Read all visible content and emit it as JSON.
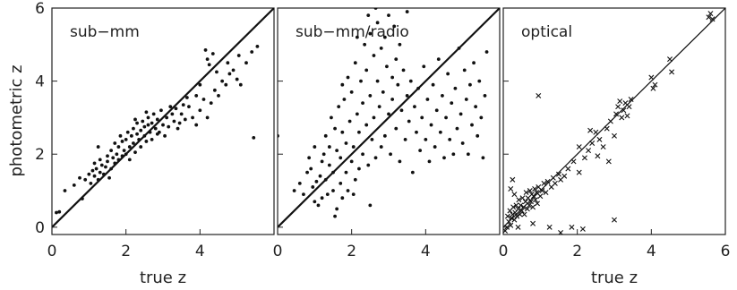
{
  "figure": {
    "ylabel": "photometric z"
  },
  "chart_data": [
    {
      "type": "scatter",
      "panel_label": "sub−mm",
      "xlabel": "true z",
      "xlim": [
        0,
        6
      ],
      "ylim": [
        -0.2,
        6
      ],
      "xticks": [
        0,
        2,
        4
      ],
      "yticks": [
        0,
        2,
        4,
        6
      ],
      "marker": "dot",
      "reference_line": "y = x",
      "points": [
        [
          0.12,
          0.4
        ],
        [
          0.2,
          0.42
        ],
        [
          0.35,
          1.0
        ],
        [
          0.6,
          1.15
        ],
        [
          0.75,
          1.35
        ],
        [
          0.82,
          0.78
        ],
        [
          0.9,
          1.3
        ],
        [
          1.0,
          1.45
        ],
        [
          1.05,
          1.2
        ],
        [
          1.1,
          1.55
        ],
        [
          1.15,
          1.4
        ],
        [
          1.2,
          1.6
        ],
        [
          1.25,
          1.3
        ],
        [
          1.3,
          1.5
        ],
        [
          1.35,
          1.7
        ],
        [
          1.4,
          1.45
        ],
        [
          1.45,
          1.65
        ],
        [
          1.5,
          1.8
        ],
        [
          1.55,
          1.35
        ],
        [
          1.6,
          2.1
        ],
        [
          1.6,
          1.6
        ],
        [
          1.65,
          1.9
        ],
        [
          1.7,
          1.75
        ],
        [
          1.7,
          2.3
        ],
        [
          1.75,
          2.0
        ],
        [
          1.8,
          1.85
        ],
        [
          1.8,
          2.2
        ],
        [
          1.85,
          2.5
        ],
        [
          1.9,
          1.95
        ],
        [
          1.9,
          2.35
        ],
        [
          1.95,
          2.1
        ],
        [
          2.0,
          2.4
        ],
        [
          2.0,
          2.0
        ],
        [
          2.05,
          2.6
        ],
        [
          2.1,
          2.2
        ],
        [
          2.1,
          1.85
        ],
        [
          2.15,
          2.5
        ],
        [
          2.2,
          2.3
        ],
        [
          2.2,
          2.7
        ],
        [
          2.25,
          2.05
        ],
        [
          2.3,
          2.55
        ],
        [
          2.3,
          2.85
        ],
        [
          2.35,
          2.4
        ],
        [
          2.4,
          2.65
        ],
        [
          2.4,
          2.2
        ],
        [
          2.45,
          2.9
        ],
        [
          2.5,
          2.5
        ],
        [
          2.5,
          2.75
        ],
        [
          2.55,
          2.35
        ],
        [
          2.6,
          2.8
        ],
        [
          2.6,
          3.0
        ],
        [
          2.65,
          2.6
        ],
        [
          2.7,
          2.85
        ],
        [
          2.7,
          2.4
        ],
        [
          2.75,
          3.1
        ],
        [
          2.8,
          2.7
        ],
        [
          2.85,
          2.95
        ],
        [
          2.9,
          2.6
        ],
        [
          2.95,
          3.2
        ],
        [
          3.0,
          2.8
        ],
        [
          3.05,
          2.5
        ],
        [
          3.1,
          3.0
        ],
        [
          3.15,
          2.75
        ],
        [
          3.2,
          3.3
        ],
        [
          3.3,
          2.9
        ],
        [
          3.4,
          2.7
        ],
        [
          3.5,
          3.1
        ],
        [
          3.6,
          2.95
        ],
        [
          3.7,
          3.3
        ],
        [
          3.8,
          3.0
        ],
        [
          3.9,
          2.8
        ],
        [
          4.0,
          3.2
        ],
        [
          4.1,
          3.5
        ],
        [
          4.2,
          3.0
        ],
        [
          4.3,
          3.4
        ],
        [
          4.4,
          3.75
        ],
        [
          4.5,
          3.6
        ],
        [
          4.6,
          4.0
        ],
        [
          4.7,
          3.9
        ],
        [
          4.8,
          4.2
        ],
        [
          5.0,
          4.05
        ],
        [
          5.1,
          3.9
        ],
        [
          5.25,
          4.5
        ],
        [
          5.4,
          4.8
        ],
        [
          5.45,
          2.45
        ],
        [
          5.55,
          4.95
        ],
        [
          4.15,
          4.85
        ],
        [
          4.2,
          4.6
        ],
        [
          4.25,
          4.45
        ],
        [
          4.9,
          4.3
        ],
        [
          5.05,
          4.7
        ],
        [
          4.35,
          4.75
        ],
        [
          4.45,
          4.25
        ],
        [
          4.75,
          4.5
        ],
        [
          3.9,
          3.6
        ],
        [
          4.0,
          3.9
        ],
        [
          3.35,
          3.25
        ],
        [
          3.45,
          2.85
        ],
        [
          2.25,
          2.95
        ],
        [
          2.55,
          3.15
        ],
        [
          1.5,
          1.95
        ],
        [
          1.3,
          1.85
        ],
        [
          1.25,
          2.2
        ],
        [
          1.15,
          1.75
        ],
        [
          2.85,
          2.55
        ],
        [
          3.25,
          3.1
        ],
        [
          3.55,
          3.35
        ],
        [
          3.65,
          3.55
        ]
      ]
    },
    {
      "type": "scatter",
      "panel_label": "sub−mm/radio",
      "xlabel": "",
      "xlim": [
        0,
        6
      ],
      "ylim": [
        -0.2,
        6
      ],
      "xticks": [
        0,
        2,
        4
      ],
      "yticks": [],
      "marker": "dot",
      "reference_line": "y = x",
      "points": [
        [
          0.0,
          2.5
        ],
        [
          0.45,
          1.0
        ],
        [
          0.6,
          1.2
        ],
        [
          0.7,
          0.9
        ],
        [
          0.8,
          1.5
        ],
        [
          0.9,
          1.6
        ],
        [
          0.95,
          1.1
        ],
        [
          1.0,
          0.7
        ],
        [
          1.05,
          1.25
        ],
        [
          1.1,
          0.6
        ],
        [
          1.15,
          1.4
        ],
        [
          1.2,
          0.8
        ],
        [
          1.2,
          1.8
        ],
        [
          1.25,
          2.0
        ],
        [
          1.3,
          1.3
        ],
        [
          1.3,
          2.5
        ],
        [
          1.35,
          0.9
        ],
        [
          1.4,
          1.7
        ],
        [
          1.4,
          2.2
        ],
        [
          1.45,
          3.0
        ],
        [
          1.5,
          1.0
        ],
        [
          1.5,
          1.5
        ],
        [
          1.55,
          2.7
        ],
        [
          1.6,
          0.5
        ],
        [
          1.6,
          2.1
        ],
        [
          1.65,
          3.3
        ],
        [
          1.7,
          1.2
        ],
        [
          1.7,
          1.9
        ],
        [
          1.75,
          2.6
        ],
        [
          1.75,
          0.8
        ],
        [
          1.8,
          3.5
        ],
        [
          1.85,
          1.5
        ],
        [
          1.85,
          2.3
        ],
        [
          1.9,
          4.1
        ],
        [
          1.9,
          1.0
        ],
        [
          1.95,
          2.9
        ],
        [
          2.0,
          1.8
        ],
        [
          2.0,
          3.7
        ],
        [
          2.05,
          2.2
        ],
        [
          2.1,
          4.5
        ],
        [
          2.1,
          1.3
        ],
        [
          2.15,
          3.1
        ],
        [
          2.2,
          2.6
        ],
        [
          2.2,
          1.6
        ],
        [
          2.25,
          4.0
        ],
        [
          2.3,
          3.4
        ],
        [
          2.3,
          2.0
        ],
        [
          2.35,
          5.0
        ],
        [
          2.4,
          2.8
        ],
        [
          2.4,
          4.3
        ],
        [
          2.45,
          1.7
        ],
        [
          2.5,
          3.6
        ],
        [
          2.5,
          5.3
        ],
        [
          2.55,
          2.4
        ],
        [
          2.6,
          4.7
        ],
        [
          2.6,
          3.0
        ],
        [
          2.65,
          1.9
        ],
        [
          2.7,
          4.0
        ],
        [
          2.7,
          5.6
        ],
        [
          2.75,
          3.3
        ],
        [
          2.8,
          2.2
        ],
        [
          2.8,
          4.9
        ],
        [
          2.85,
          3.7
        ],
        [
          2.9,
          5.2
        ],
        [
          2.9,
          2.5
        ],
        [
          2.95,
          4.4
        ],
        [
          3.0,
          3.1
        ],
        [
          3.0,
          5.8
        ],
        [
          3.05,
          2.0
        ],
        [
          3.1,
          4.1
        ],
        [
          3.1,
          3.5
        ],
        [
          3.15,
          5.5
        ],
        [
          3.2,
          2.7
        ],
        [
          3.2,
          4.6
        ],
        [
          3.25,
          3.9
        ],
        [
          3.3,
          1.8
        ],
        [
          3.3,
          5.0
        ],
        [
          3.35,
          3.2
        ],
        [
          3.4,
          4.3
        ],
        [
          3.45,
          2.4
        ],
        [
          3.5,
          3.6
        ],
        [
          3.5,
          5.9
        ],
        [
          3.55,
          2.9
        ],
        [
          3.6,
          4.0
        ],
        [
          3.65,
          1.5
        ],
        [
          3.7,
          3.3
        ],
        [
          3.75,
          2.6
        ],
        [
          3.8,
          3.8
        ],
        [
          3.85,
          2.1
        ],
        [
          3.9,
          3.0
        ],
        [
          3.95,
          4.4
        ],
        [
          4.0,
          2.4
        ],
        [
          4.05,
          3.5
        ],
        [
          4.1,
          1.8
        ],
        [
          4.15,
          2.8
        ],
        [
          4.2,
          3.9
        ],
        [
          4.25,
          2.2
        ],
        [
          4.3,
          3.2
        ],
        [
          4.35,
          4.6
        ],
        [
          4.4,
          2.6
        ],
        [
          4.45,
          3.6
        ],
        [
          4.5,
          1.9
        ],
        [
          4.55,
          3.0
        ],
        [
          4.6,
          4.2
        ],
        [
          4.65,
          2.4
        ],
        [
          4.7,
          3.4
        ],
        [
          4.75,
          2.0
        ],
        [
          4.8,
          3.8
        ],
        [
          4.85,
          2.7
        ],
        [
          4.9,
          4.9
        ],
        [
          4.95,
          3.1
        ],
        [
          5.0,
          2.3
        ],
        [
          5.05,
          4.3
        ],
        [
          5.1,
          3.5
        ],
        [
          5.15,
          2.0
        ],
        [
          5.2,
          3.9
        ],
        [
          5.25,
          2.8
        ],
        [
          5.3,
          4.5
        ],
        [
          5.35,
          3.3
        ],
        [
          5.4,
          2.5
        ],
        [
          5.45,
          4.0
        ],
        [
          5.5,
          3.0
        ],
        [
          5.55,
          1.9
        ],
        [
          5.6,
          3.6
        ],
        [
          5.65,
          4.8
        ],
        [
          1.0,
          2.2
        ],
        [
          0.85,
          1.9
        ],
        [
          1.55,
          0.3
        ],
        [
          2.05,
          0.9
        ],
        [
          2.5,
          0.6
        ],
        [
          1.75,
          3.9
        ],
        [
          2.15,
          5.2
        ],
        [
          2.45,
          5.8
        ],
        [
          2.65,
          6.0
        ]
      ]
    },
    {
      "type": "scatter",
      "panel_label": "optical",
      "xlabel": "true z",
      "xlim": [
        0,
        6
      ],
      "ylim": [
        -0.2,
        6
      ],
      "xticks": [
        0,
        2,
        4,
        6
      ],
      "yticks": [],
      "marker": "cross",
      "reference_line": "y = x",
      "points": [
        [
          0.05,
          -0.1
        ],
        [
          0.1,
          0.0
        ],
        [
          0.12,
          0.3
        ],
        [
          0.15,
          0.15
        ],
        [
          0.18,
          0.45
        ],
        [
          0.2,
          0.05
        ],
        [
          0.22,
          0.25
        ],
        [
          0.25,
          0.35
        ],
        [
          0.27,
          0.55
        ],
        [
          0.3,
          0.2
        ],
        [
          0.32,
          0.4
        ],
        [
          0.35,
          0.6
        ],
        [
          0.37,
          0.3
        ],
        [
          0.4,
          0.5
        ],
        [
          0.42,
          0.75
        ],
        [
          0.45,
          0.35
        ],
        [
          0.47,
          0.6
        ],
        [
          0.5,
          0.45
        ],
        [
          0.52,
          0.8
        ],
        [
          0.55,
          0.55
        ],
        [
          0.57,
          0.35
        ],
        [
          0.6,
          0.7
        ],
        [
          0.62,
          0.95
        ],
        [
          0.65,
          0.5
        ],
        [
          0.67,
          0.8
        ],
        [
          0.7,
          0.6
        ],
        [
          0.72,
          1.0
        ],
        [
          0.75,
          0.7
        ],
        [
          0.77,
          0.9
        ],
        [
          0.8,
          0.55
        ],
        [
          0.82,
          0.85
        ],
        [
          0.85,
          1.05
        ],
        [
          0.87,
          0.75
        ],
        [
          0.9,
          0.95
        ],
        [
          0.92,
          0.65
        ],
        [
          0.95,
          1.1
        ],
        [
          1.0,
          0.85
        ],
        [
          1.05,
          1.0
        ],
        [
          1.1,
          1.2
        ],
        [
          1.15,
          0.95
        ],
        [
          1.2,
          1.25
        ],
        [
          1.3,
          1.1
        ],
        [
          1.35,
          1.35
        ],
        [
          1.4,
          1.2
        ],
        [
          1.5,
          1.45
        ],
        [
          1.55,
          1.3
        ],
        [
          0.3,
          0.9
        ],
        [
          0.2,
          1.05
        ],
        [
          0.25,
          1.3
        ],
        [
          0.95,
          3.6
        ],
        [
          1.55,
          -0.15
        ],
        [
          1.85,
          0.0
        ],
        [
          2.15,
          -0.05
        ],
        [
          0.4,
          0.0
        ],
        [
          0.8,
          0.1
        ],
        [
          1.25,
          0.0
        ],
        [
          1.9,
          1.8
        ],
        [
          2.05,
          2.2
        ],
        [
          2.2,
          1.9
        ],
        [
          2.3,
          2.1
        ],
        [
          2.4,
          2.3
        ],
        [
          2.5,
          2.6
        ],
        [
          2.55,
          1.95
        ],
        [
          2.6,
          2.4
        ],
        [
          2.7,
          2.2
        ],
        [
          2.8,
          2.7
        ],
        [
          2.85,
          1.8
        ],
        [
          2.9,
          2.9
        ],
        [
          3.0,
          2.5
        ],
        [
          3.05,
          3.1
        ],
        [
          3.1,
          3.3
        ],
        [
          3.2,
          3.0
        ],
        [
          3.25,
          3.2
        ],
        [
          3.3,
          3.4
        ],
        [
          3.35,
          3.05
        ],
        [
          3.4,
          3.3
        ],
        [
          3.45,
          3.5
        ],
        [
          3.0,
          0.2
        ],
        [
          4.0,
          4.1
        ],
        [
          4.05,
          3.8
        ],
        [
          4.1,
          3.9
        ],
        [
          4.5,
          4.6
        ],
        [
          4.55,
          4.25
        ],
        [
          5.55,
          5.75
        ],
        [
          5.6,
          5.85
        ],
        [
          5.65,
          5.7
        ],
        [
          2.05,
          1.5
        ],
        [
          1.75,
          1.6
        ],
        [
          1.65,
          1.4
        ],
        [
          2.35,
          2.65
        ],
        [
          3.15,
          3.45
        ]
      ]
    }
  ]
}
